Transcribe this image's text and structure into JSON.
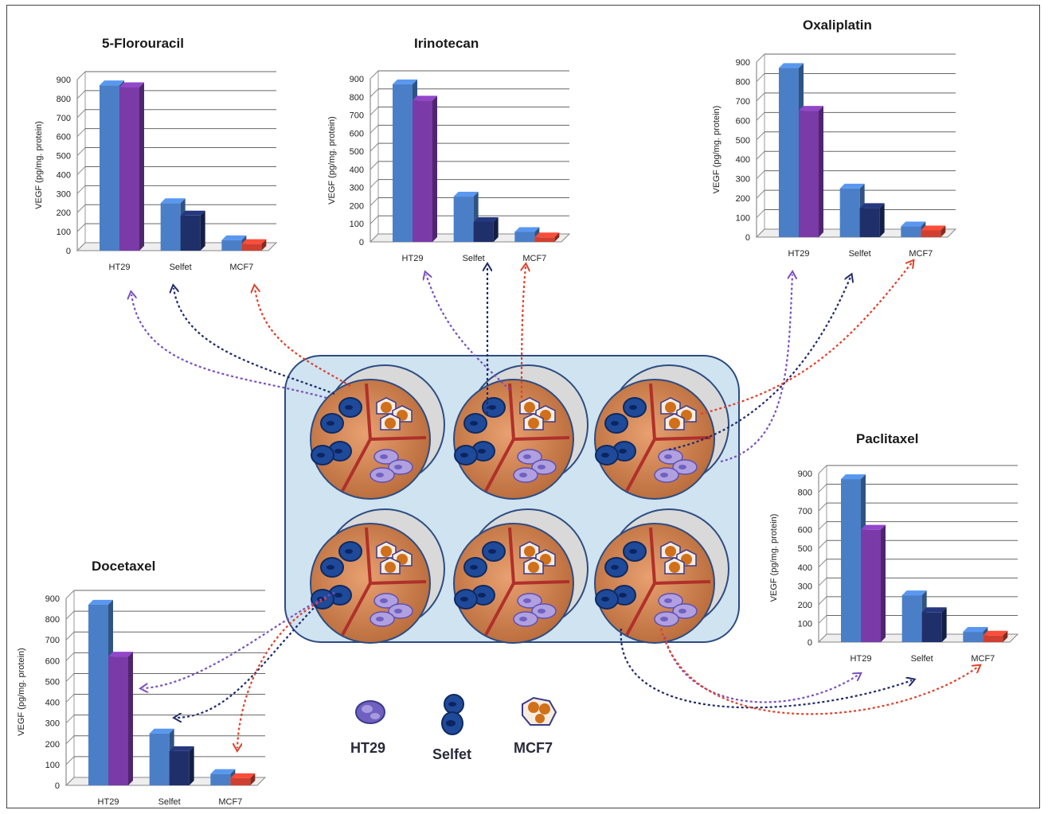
{
  "chart_data": [
    {
      "type": "bar",
      "title": "5-Florouracil",
      "ylabel": "VEGF (pg/mg. protein)",
      "ylim": [
        0,
        900
      ],
      "yticks": [
        0,
        100,
        200,
        300,
        400,
        500,
        600,
        700,
        800,
        900
      ],
      "categories": [
        "HT29",
        "Selfet",
        "MCF7"
      ],
      "values": [
        [
          870,
          860
        ],
        [
          250,
          185
        ],
        [
          55,
          35
        ]
      ]
    },
    {
      "type": "bar",
      "title": "Irinotecan",
      "ylabel": "VEGF (pg/mg. protein)",
      "ylim": [
        0,
        900
      ],
      "yticks": [
        0,
        100,
        200,
        300,
        400,
        500,
        600,
        700,
        800,
        900
      ],
      "categories": [
        "HT29",
        "Selfet",
        "MCF7"
      ],
      "values": [
        [
          870,
          780
        ],
        [
          250,
          110
        ],
        [
          55,
          25
        ]
      ]
    },
    {
      "type": "bar",
      "title": "Oxaliplatin",
      "ylabel": "VEGF (pg/mg. protein)",
      "ylim": [
        0,
        900
      ],
      "yticks": [
        0,
        100,
        200,
        300,
        400,
        500,
        600,
        700,
        800,
        900
      ],
      "categories": [
        "HT29",
        "Selfet",
        "MCF7"
      ],
      "values": [
        [
          870,
          650
        ],
        [
          250,
          150
        ],
        [
          55,
          35
        ]
      ]
    },
    {
      "type": "bar",
      "title": "Paclitaxel",
      "ylabel": "VEGF (pg/mg. protein)",
      "ylim": [
        0,
        900
      ],
      "yticks": [
        0,
        100,
        200,
        300,
        400,
        500,
        600,
        700,
        800,
        900
      ],
      "categories": [
        "HT29",
        "Selfet",
        "MCF7"
      ],
      "values": [
        [
          870,
          600
        ],
        [
          250,
          160
        ],
        [
          55,
          35
        ]
      ]
    },
    {
      "type": "bar",
      "title": "Docetaxel",
      "ylabel": "VEGF (pg/mg. protein)",
      "ylim": [
        0,
        900
      ],
      "yticks": [
        0,
        100,
        200,
        300,
        400,
        500,
        600,
        700,
        800,
        900
      ],
      "categories": [
        "HT29",
        "Selfet",
        "MCF7"
      ],
      "values": [
        [
          870,
          620
        ],
        [
          250,
          165
        ],
        [
          55,
          35
        ]
      ]
    }
  ],
  "colors": {
    "ht29_before": "#4a7fc8",
    "ht29_after": "#7a3aa8",
    "selfet_before": "#4a7fc8",
    "selfet_after": "#1f2f6a",
    "mcf7_before": "#4a7fc8",
    "mcf7_after": "#d04030",
    "plate": "#cfe3f1",
    "arrow_ht29": "#7a4fc0",
    "arrow_selfet": "#1f2a6a",
    "arrow_mcf7": "#e0402a"
  },
  "legend": {
    "items": [
      {
        "label": "HT29",
        "icon": "ht29-cell-icon"
      },
      {
        "label": "Selfet",
        "icon": "selfet-cell-icon"
      },
      {
        "label": "MCF7",
        "icon": "mcf7-cell-icon"
      }
    ]
  }
}
